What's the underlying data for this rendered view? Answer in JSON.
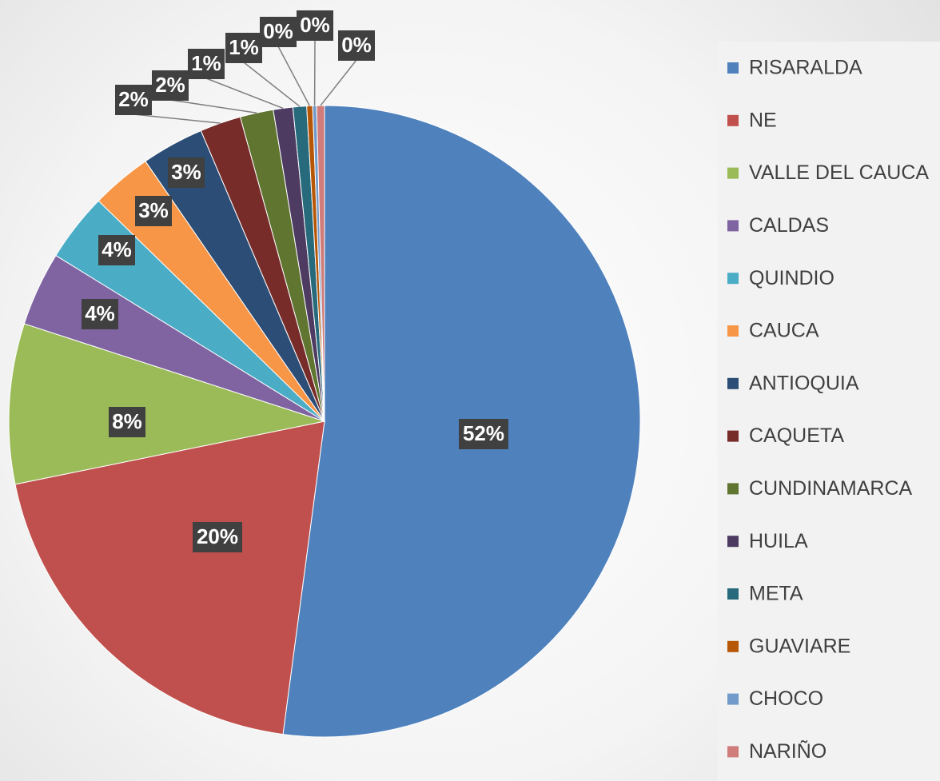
{
  "chart_data": {
    "type": "pie",
    "categories": [
      "RISARALDA",
      "NE",
      "VALLE DEL CAUCA",
      "CALDAS",
      "QUINDIO",
      "CAUCA",
      "ANTIOQUIA",
      "CAQUETA",
      "CUNDINAMARCA",
      "HUILA",
      "META",
      "GUAVIARE",
      "CHOCO",
      "NARIÑO"
    ],
    "values": [
      52.1,
      19.7,
      8.2,
      3.8,
      3.5,
      3.1,
      3.2,
      2.1,
      1.7,
      1.0,
      0.7,
      0.3,
      0.2,
      0.4
    ],
    "value_labels": [
      "52%",
      "20%",
      "8%",
      "4%",
      "4%",
      "3%",
      "3%",
      "2%",
      "2%",
      "1%",
      "1%",
      "0%",
      "0%",
      "0%"
    ],
    "colors": [
      "#4f81bd",
      "#c0504d",
      "#9bbb59",
      "#8064a2",
      "#4bacc6",
      "#f79646",
      "#2c4d75",
      "#772c2a",
      "#5f7530",
      "#4d3b62",
      "#276a7c",
      "#b65708",
      "#729aca",
      "#d07c7a"
    ],
    "legend": "right"
  }
}
